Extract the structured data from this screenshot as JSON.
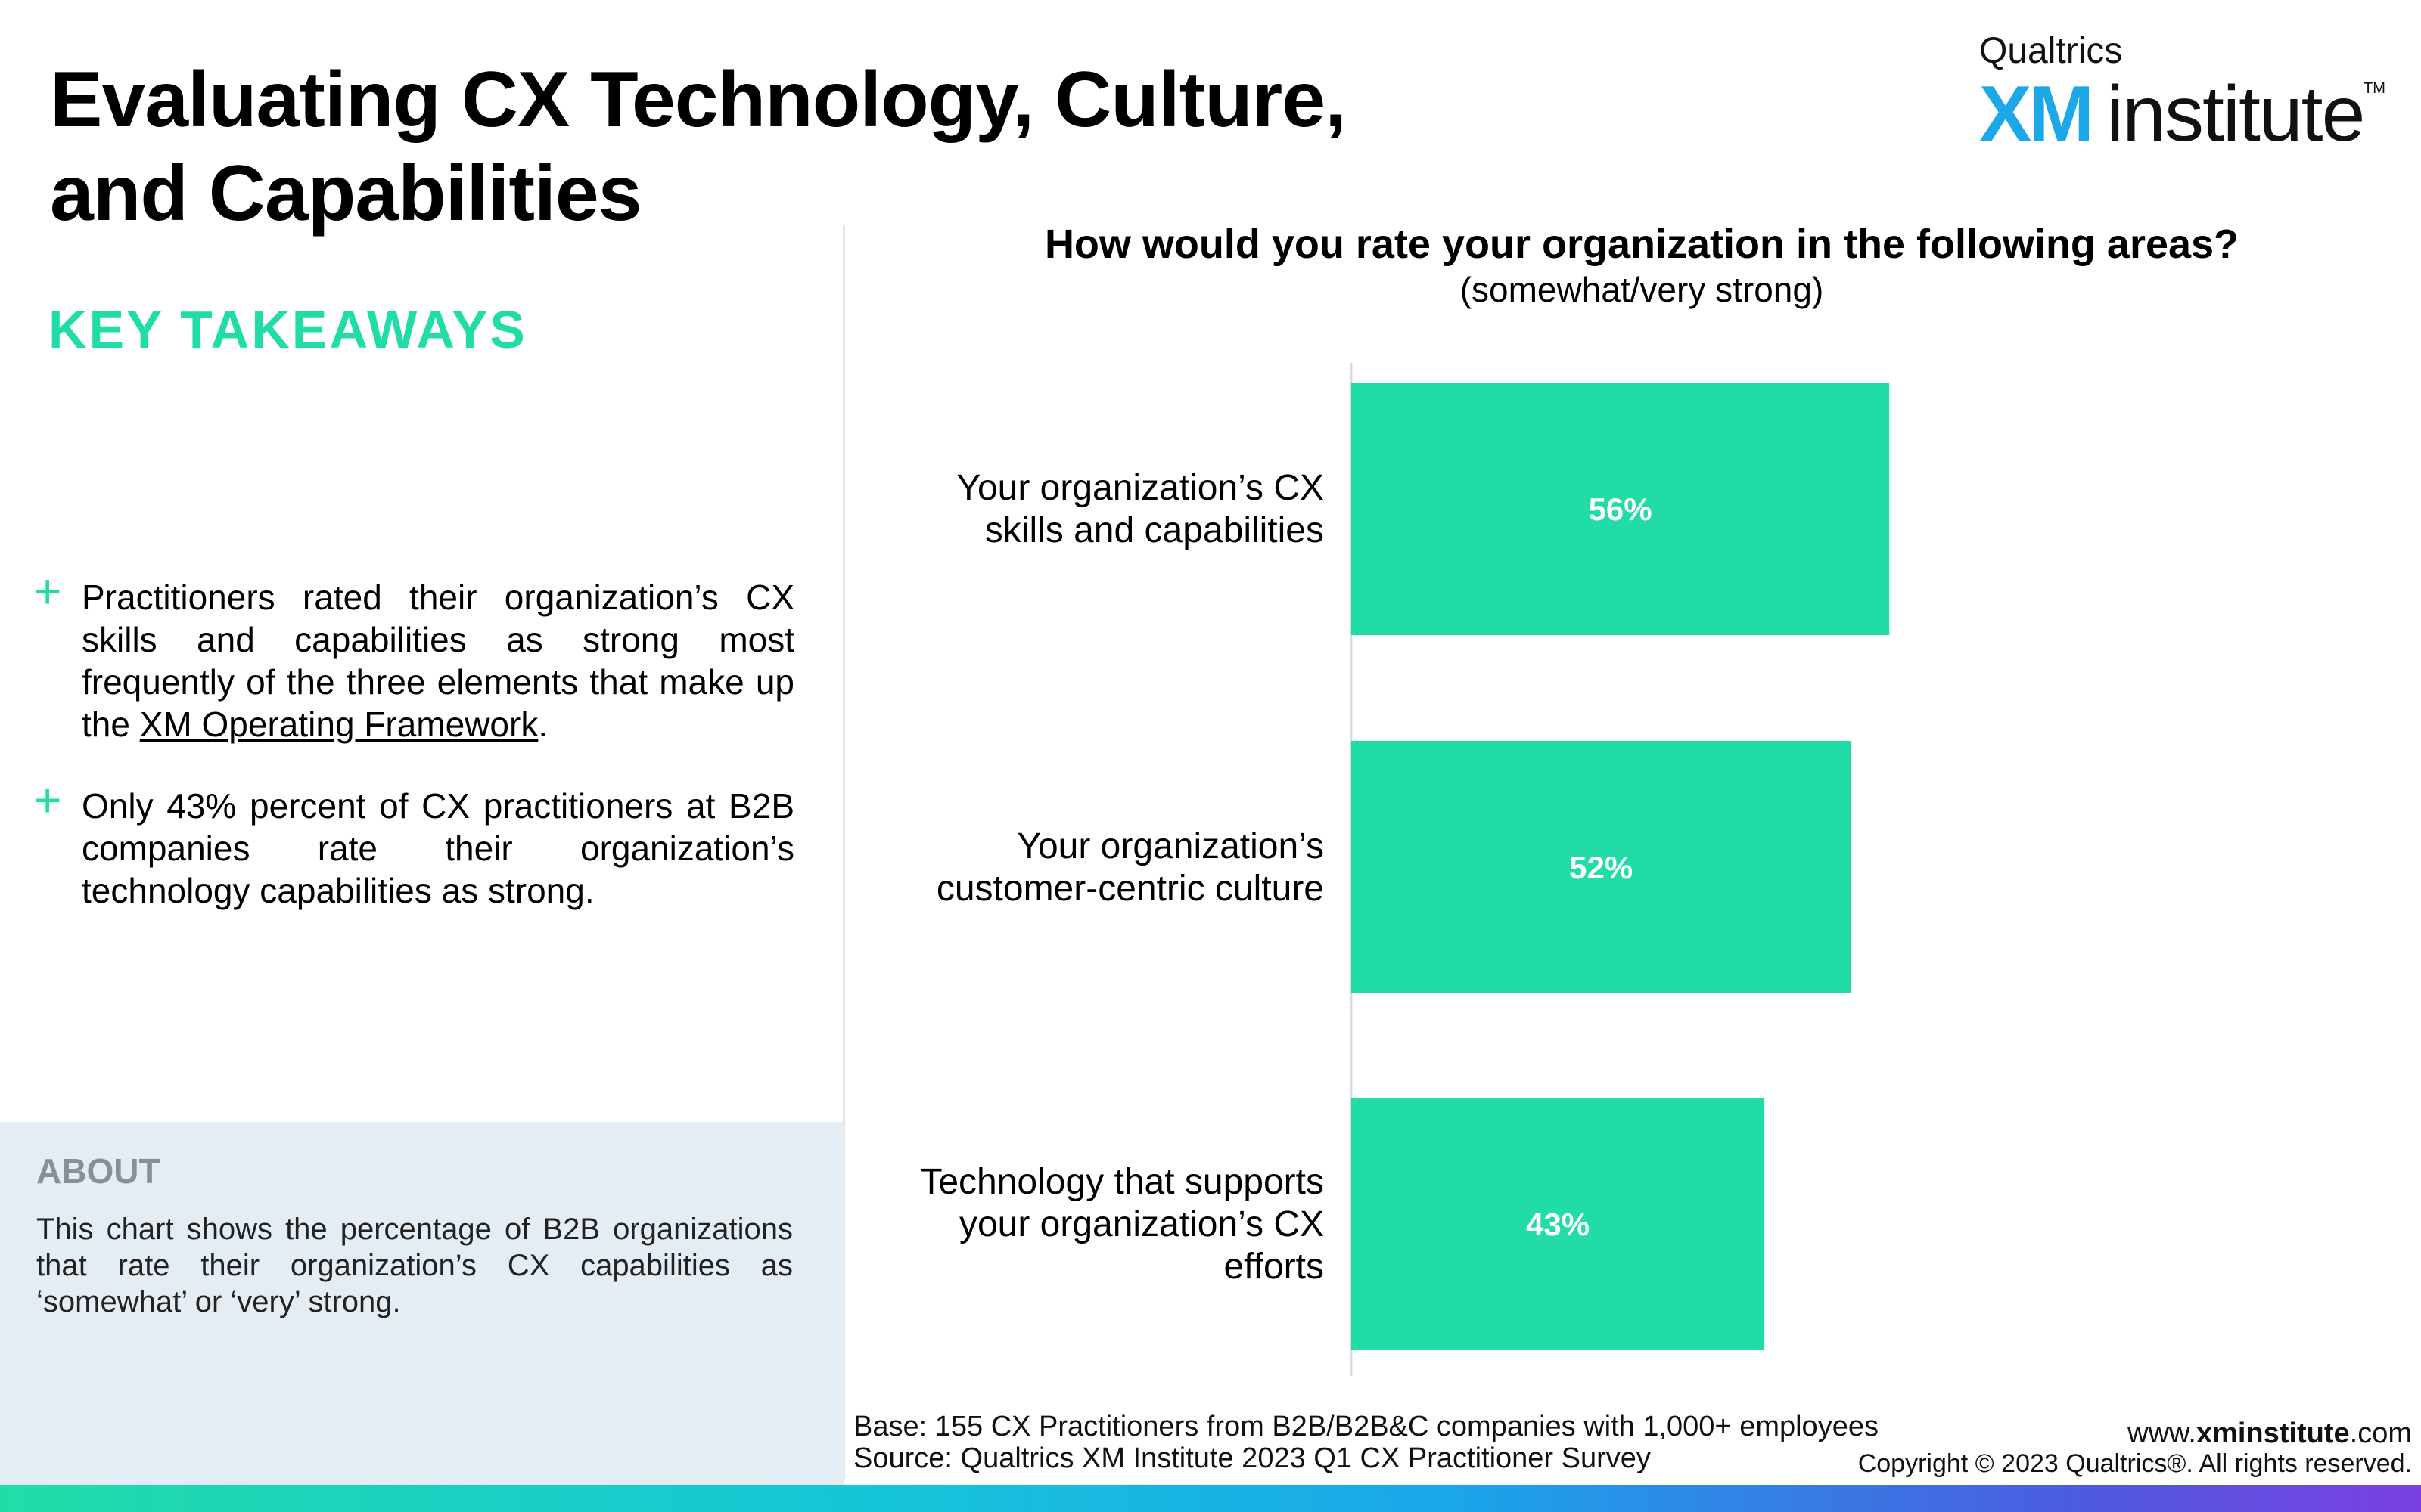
{
  "header": {
    "title_line1": "Evaluating CX Technology, Culture,",
    "title_line2": "and Capabilities"
  },
  "logo": {
    "brand": "Qualtrics",
    "xm": "XM",
    "institute": "institute",
    "tm": "TM"
  },
  "takeaways": {
    "heading": "KEY TAKEAWAYS",
    "items": [
      {
        "text_before_link": "Practitioners rated their organization’s CX skills and capabilities as strong most frequently of the three elements that make up the ",
        "link_text": "XM Operating Framework",
        "text_after_link": "."
      },
      {
        "text": "Only 43% percent of CX practitioners at B2B companies rate their organization’s technology capabilities as strong."
      }
    ]
  },
  "about": {
    "heading": "ABOUT",
    "text": "This chart shows the percentage of B2B organizations that rate their organization’s CX capabilities  as ‘somewhat’ or ‘very’ strong."
  },
  "chart_data": {
    "type": "bar",
    "orientation": "horizontal",
    "title": "How would you rate your organization in the following areas?",
    "subtitle": "(somewhat/very strong)",
    "categories": [
      [
        "Your organization’s CX",
        "skills and capabilities"
      ],
      [
        "Your organization’s",
        "customer-centric culture"
      ],
      [
        "Technology that supports",
        "your organization’s CX",
        "efforts"
      ]
    ],
    "values": [
      56,
      52,
      43
    ],
    "value_labels": [
      "56%",
      "52%",
      "43%"
    ],
    "xlim": [
      0,
      100
    ],
    "bar_color": "#22dca8",
    "axis_color": "#d8dce0",
    "grid": false,
    "legend": "none"
  },
  "footnote": {
    "base": "Base: 155 CX Practitioners from B2B/B2B&C companies with 1,000+ employees",
    "source": "Source: Qualtrics XM Institute 2023 Q1 CX Practitioner Survey"
  },
  "footer": {
    "site_prefix": "www.",
    "site_bold": "xminstitute",
    "site_suffix": ".com",
    "copyright": "Copyright © 2023 Qualtrics®. All rights reserved."
  }
}
